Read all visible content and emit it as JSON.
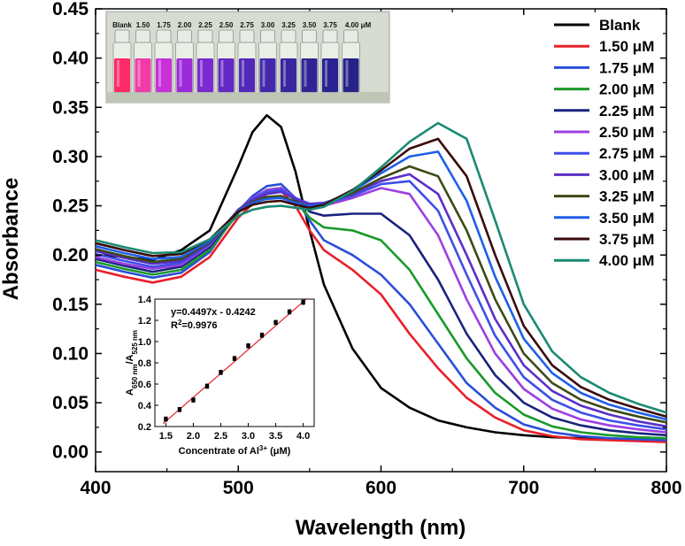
{
  "chart_data": [
    {
      "type": "line",
      "title": "",
      "xlabel": "Wavelength (nm)",
      "ylabel": "Absorbance",
      "xlim": [
        400,
        800
      ],
      "ylim": [
        -0.02,
        0.45
      ],
      "xticks": [
        "400",
        "500",
        "600",
        "700",
        "800"
      ],
      "yticks": [
        "0.00",
        "0.05",
        "0.10",
        "0.15",
        "0.20",
        "0.25",
        "0.30",
        "0.35",
        "0.40",
        "0.45"
      ],
      "grid": false,
      "legend_position": "top-right",
      "x": [
        400,
        420,
        440,
        460,
        480,
        500,
        510,
        520,
        530,
        540,
        550,
        560,
        580,
        600,
        620,
        640,
        660,
        680,
        700,
        720,
        740,
        760,
        780,
        800
      ],
      "series": [
        {
          "name": "Blank",
          "color": "#000000",
          "values": [
            0.2,
            0.198,
            0.195,
            0.205,
            0.225,
            0.29,
            0.325,
            0.342,
            0.33,
            0.285,
            0.225,
            0.17,
            0.105,
            0.065,
            0.045,
            0.032,
            0.025,
            0.02,
            0.017,
            0.015,
            0.014,
            0.013,
            0.012,
            0.011
          ]
        },
        {
          "name": "1.50 μM",
          "color": "#e8202a",
          "values": [
            0.185,
            0.178,
            0.172,
            0.178,
            0.198,
            0.238,
            0.252,
            0.262,
            0.265,
            0.25,
            0.225,
            0.205,
            0.185,
            0.16,
            0.12,
            0.085,
            0.055,
            0.035,
            0.022,
            0.016,
            0.013,
            0.012,
            0.011,
            0.01
          ]
        },
        {
          "name": "1.75 μM",
          "color": "#2a4fd8",
          "values": [
            0.19,
            0.183,
            0.177,
            0.182,
            0.203,
            0.245,
            0.26,
            0.27,
            0.272,
            0.258,
            0.235,
            0.215,
            0.2,
            0.18,
            0.15,
            0.11,
            0.07,
            0.045,
            0.028,
            0.02,
            0.016,
            0.014,
            0.013,
            0.012
          ]
        },
        {
          "name": "2.00 μM",
          "color": "#1a9a2a",
          "values": [
            0.193,
            0.186,
            0.18,
            0.185,
            0.205,
            0.243,
            0.256,
            0.266,
            0.268,
            0.255,
            0.238,
            0.228,
            0.225,
            0.215,
            0.185,
            0.14,
            0.095,
            0.06,
            0.038,
            0.026,
            0.02,
            0.017,
            0.015,
            0.014
          ]
        },
        {
          "name": "2.25 μM",
          "color": "#1a237e",
          "values": [
            0.196,
            0.189,
            0.183,
            0.188,
            0.208,
            0.245,
            0.257,
            0.266,
            0.268,
            0.256,
            0.244,
            0.24,
            0.242,
            0.242,
            0.22,
            0.175,
            0.12,
            0.078,
            0.05,
            0.035,
            0.027,
            0.022,
            0.019,
            0.017
          ]
        },
        {
          "name": "2.50 μM",
          "color": "#9c3fe0",
          "values": [
            0.198,
            0.191,
            0.186,
            0.19,
            0.21,
            0.246,
            0.258,
            0.266,
            0.268,
            0.258,
            0.25,
            0.25,
            0.258,
            0.268,
            0.262,
            0.22,
            0.155,
            0.1,
            0.064,
            0.044,
            0.033,
            0.027,
            0.023,
            0.02
          ]
        },
        {
          "name": "2.75 μM",
          "color": "#3d4fe8",
          "values": [
            0.201,
            0.194,
            0.188,
            0.192,
            0.211,
            0.246,
            0.257,
            0.264,
            0.266,
            0.258,
            0.252,
            0.252,
            0.26,
            0.272,
            0.275,
            0.245,
            0.18,
            0.118,
            0.076,
            0.053,
            0.04,
            0.032,
            0.027,
            0.023
          ]
        },
        {
          "name": "3.00 μM",
          "color": "#5a2fc8",
          "values": [
            0.204,
            0.197,
            0.191,
            0.194,
            0.212,
            0.246,
            0.256,
            0.262,
            0.264,
            0.257,
            0.252,
            0.253,
            0.262,
            0.275,
            0.282,
            0.262,
            0.2,
            0.135,
            0.088,
            0.062,
            0.047,
            0.038,
            0.031,
            0.026
          ]
        },
        {
          "name": "3.25 μM",
          "color": "#3d4a14",
          "values": [
            0.206,
            0.199,
            0.193,
            0.196,
            0.213,
            0.245,
            0.254,
            0.259,
            0.26,
            0.254,
            0.25,
            0.252,
            0.263,
            0.278,
            0.29,
            0.28,
            0.225,
            0.155,
            0.1,
            0.07,
            0.053,
            0.043,
            0.036,
            0.03
          ]
        },
        {
          "name": "3.50 μM",
          "color": "#1f5fe8",
          "values": [
            0.209,
            0.202,
            0.196,
            0.198,
            0.214,
            0.245,
            0.253,
            0.257,
            0.258,
            0.253,
            0.25,
            0.252,
            0.265,
            0.283,
            0.3,
            0.305,
            0.255,
            0.178,
            0.115,
            0.08,
            0.06,
            0.048,
            0.04,
            0.033
          ]
        },
        {
          "name": "3.75 μM",
          "color": "#3a0a0a",
          "values": [
            0.212,
            0.205,
            0.199,
            0.201,
            0.216,
            0.244,
            0.251,
            0.254,
            0.255,
            0.251,
            0.248,
            0.251,
            0.266,
            0.286,
            0.308,
            0.318,
            0.28,
            0.2,
            0.128,
            0.088,
            0.066,
            0.053,
            0.044,
            0.036
          ]
        },
        {
          "name": "4.00 μM",
          "color": "#1a8a72",
          "values": [
            0.215,
            0.208,
            0.202,
            0.203,
            0.216,
            0.24,
            0.246,
            0.249,
            0.25,
            0.248,
            0.246,
            0.249,
            0.265,
            0.289,
            0.315,
            0.334,
            0.318,
            0.235,
            0.15,
            0.102,
            0.076,
            0.06,
            0.049,
            0.04
          ]
        }
      ],
      "legend": [
        "Blank",
        "1.50 μM",
        "1.75 μM",
        "2.00 μM",
        "2.25 μM",
        "2.50 μM",
        "2.75 μM",
        "3.00 μM",
        "3.25 μM",
        "3.50 μM",
        "3.75 μM",
        "4.00 μM"
      ]
    },
    {
      "type": "scatter",
      "title": "",
      "xlabel_main": "Concentrate of Al",
      "xlabel_sup": "3+",
      "xlabel_unit": " (μM)",
      "ylabel_main": "A",
      "ylabel_sub1": "650 nm",
      "ylabel_mid": "/A",
      "ylabel_sub2": "525 nm",
      "xlim": [
        1.3,
        4.2
      ],
      "ylim": [
        0.2,
        1.4
      ],
      "xticks": [
        "1.5",
        "2.0",
        "2.5",
        "3.0",
        "3.5",
        "4.0"
      ],
      "yticks": [
        "0.2",
        "0.4",
        "0.6",
        "0.8",
        "1.0",
        "1.2",
        "1.4"
      ],
      "x": [
        1.5,
        1.75,
        2.0,
        2.25,
        2.5,
        2.75,
        3.0,
        3.25,
        3.5,
        3.75,
        4.0
      ],
      "y": [
        0.27,
        0.36,
        0.45,
        0.58,
        0.71,
        0.84,
        0.96,
        1.06,
        1.18,
        1.28,
        1.37
      ],
      "error": [
        0.02,
        0.02,
        0.02,
        0.02,
        0.02,
        0.02,
        0.02,
        0.02,
        0.02,
        0.02,
        0.02
      ],
      "fit": {
        "slope": 0.4497,
        "intercept": -0.4242,
        "color": "#e8202a"
      },
      "equation": "y=0.4497x - 0.4242",
      "r2_main": "R",
      "r2_sup": "2",
      "r2_value": "=0.9976"
    }
  ],
  "photo": {
    "labels": [
      "Blank",
      "1.50",
      "1.75",
      "2.00",
      "2.25",
      "2.50",
      "2.75",
      "3.00",
      "3.25",
      "3.50",
      "3.75",
      "4.00 μM"
    ],
    "vial_colors": [
      "#ff2a68",
      "#f23aa8",
      "#c830d8",
      "#9c2ad8",
      "#7a2ad0",
      "#6428c4",
      "#5228b8",
      "#4428ac",
      "#3a26a0",
      "#302494",
      "#2a2290",
      "#26228a"
    ]
  }
}
